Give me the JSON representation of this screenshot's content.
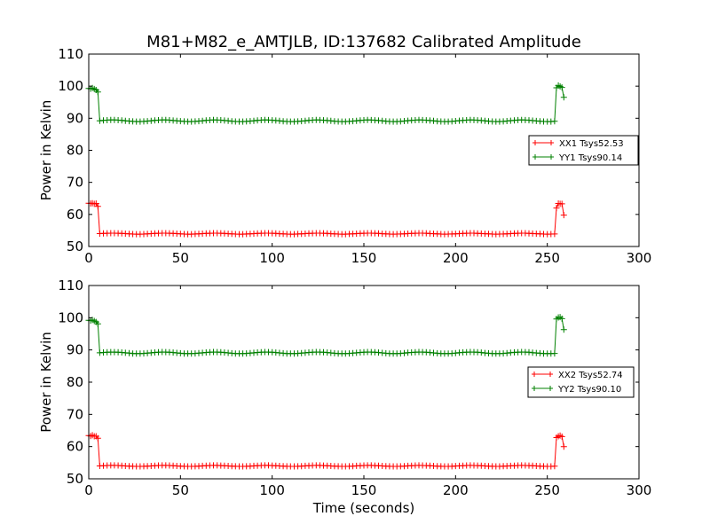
{
  "figure_title": "M81+M82_e_AMTJLB, ID:137682 Calibrated Amplitude",
  "colors": {
    "xx": "#ff0000",
    "yy": "#008000",
    "axes": "#000000",
    "background": "#ffffff"
  },
  "chart_data": [
    {
      "type": "line",
      "marker": "+",
      "ylabel": "Power in Kelvin",
      "xlabel": "",
      "xlim": [
        0,
        300
      ],
      "ylim": [
        50,
        110
      ],
      "xticks": [
        0,
        50,
        100,
        150,
        200,
        250,
        300
      ],
      "yticks": [
        50,
        60,
        70,
        80,
        90,
        100,
        110
      ],
      "grid": false,
      "legend_position": "right",
      "series": [
        {
          "name": "XX1 Tsys52.53",
          "color": "#ff0000",
          "segments": [
            {
              "x": [
                0,
                1,
                2,
                3,
                4,
                5
              ],
              "y": [
                63.5,
                63.4,
                63.5,
                63.3,
                63.4,
                62.5
              ]
            },
            {
              "x_start": 6,
              "x_end": 254,
              "x_step": 2,
              "y_base": 54.0,
              "y_amplitude": 0.15
            },
            {
              "x": [
                255,
                256,
                257,
                258,
                259
              ],
              "y": [
                62.0,
                63.4,
                63.3,
                63.3,
                59.8
              ]
            }
          ]
        },
        {
          "name": "YY1 Tsys90.14",
          "color": "#008000",
          "segments": [
            {
              "x": [
                0,
                1,
                2,
                3,
                4,
                5
              ],
              "y": [
                99.3,
                99.2,
                99.4,
                99.1,
                98.8,
                98.2
              ]
            },
            {
              "x_start": 6,
              "x_end": 254,
              "x_step": 2,
              "y_base": 89.2,
              "y_amplitude": 0.25
            },
            {
              "x": [
                255,
                256,
                257,
                258,
                259
              ],
              "y": [
                99.5,
                100.2,
                99.9,
                99.6,
                96.5
              ]
            }
          ]
        }
      ]
    },
    {
      "type": "line",
      "marker": "+",
      "ylabel": "Power in Kelvin",
      "xlabel": "Time (seconds)",
      "xlim": [
        0,
        300
      ],
      "ylim": [
        50,
        110
      ],
      "xticks": [
        0,
        50,
        100,
        150,
        200,
        250,
        300
      ],
      "yticks": [
        50,
        60,
        70,
        80,
        90,
        100,
        110
      ],
      "grid": false,
      "legend_position": "right",
      "series": [
        {
          "name": "XX2 Tsys52.74",
          "color": "#ff0000",
          "segments": [
            {
              "x": [
                0,
                1,
                2,
                3,
                4,
                5
              ],
              "y": [
                63.4,
                63.3,
                63.5,
                63.2,
                63.2,
                62.6
              ]
            },
            {
              "x_start": 6,
              "x_end": 254,
              "x_step": 2,
              "y_base": 54.0,
              "y_amplitude": 0.15
            },
            {
              "x": [
                255,
                256,
                257,
                258,
                259
              ],
              "y": [
                62.8,
                63.2,
                63.4,
                63.1,
                60.0
              ]
            }
          ]
        },
        {
          "name": "YY2 Tsys90.10",
          "color": "#008000",
          "segments": [
            {
              "x": [
                0,
                1,
                2,
                3,
                4,
                5
              ],
              "y": [
                99.2,
                99.1,
                99.3,
                99.0,
                98.7,
                98.1
              ]
            },
            {
              "x_start": 6,
              "x_end": 254,
              "x_step": 2,
              "y_base": 89.1,
              "y_amplitude": 0.25
            },
            {
              "x": [
                255,
                256,
                257,
                258,
                259
              ],
              "y": [
                99.6,
                100.1,
                100.2,
                99.7,
                96.3
              ]
            }
          ]
        }
      ]
    }
  ]
}
